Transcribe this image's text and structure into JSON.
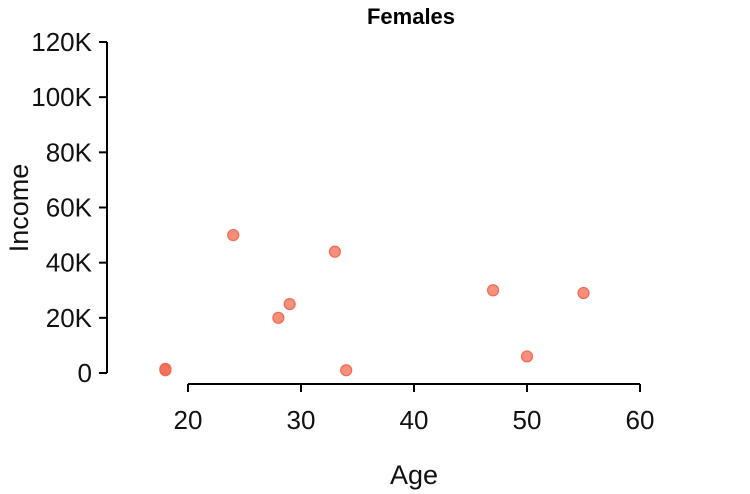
{
  "chart_data": {
    "type": "scatter",
    "title": "Females",
    "xlabel": "Age",
    "ylabel": "Income",
    "xlim": [
      20,
      60
    ],
    "ylim": [
      0,
      120000
    ],
    "x_ticks": [
      20,
      30,
      40,
      50,
      60
    ],
    "x_tick_labels": [
      "20",
      "30",
      "40",
      "50",
      "60"
    ],
    "y_ticks": [
      0,
      20000,
      40000,
      60000,
      80000,
      100000,
      120000
    ],
    "y_tick_labels": [
      "0",
      "20K",
      "40K",
      "60K",
      "80K",
      "100K",
      "120K"
    ],
    "grid": false,
    "point_color": "#f26a52",
    "series": [
      {
        "points": [
          {
            "x": 18,
            "y": 1500
          },
          {
            "x": 18,
            "y": 1000
          },
          {
            "x": 24,
            "y": 50000
          },
          {
            "x": 28,
            "y": 20000
          },
          {
            "x": 29,
            "y": 25000
          },
          {
            "x": 33,
            "y": 44000
          },
          {
            "x": 34,
            "y": 1000
          },
          {
            "x": 47,
            "y": 30000
          },
          {
            "x": 50,
            "y": 6000
          },
          {
            "x": 55,
            "y": 29000
          }
        ]
      }
    ]
  }
}
